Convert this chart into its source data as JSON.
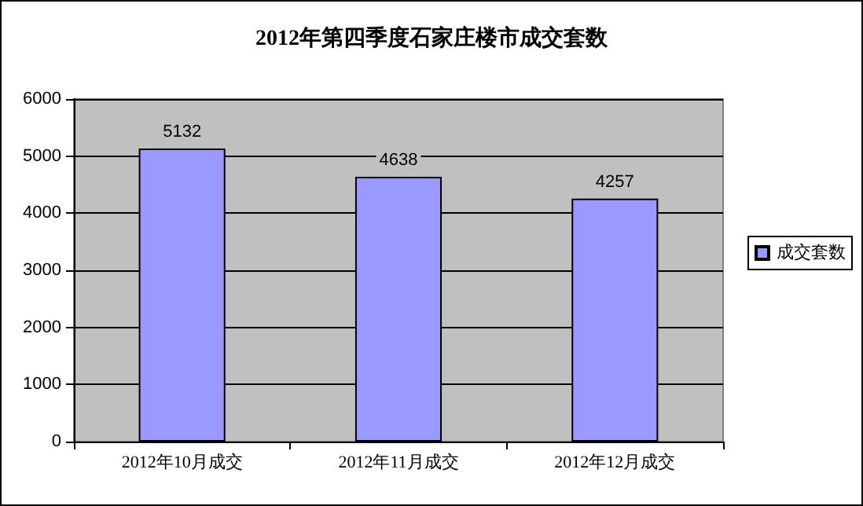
{
  "chart_data": {
    "type": "bar",
    "title": "2012年第四季度石家庄楼市成交套数",
    "categories": [
      "2012年10月成交",
      "2012年11月成交",
      "2012年12月成交"
    ],
    "series": [
      {
        "name": "成交套数",
        "color": "#9999ff",
        "values": [
          5132,
          4638,
          4257
        ]
      }
    ],
    "ylim": [
      0,
      6000
    ],
    "yticks": [
      0,
      1000,
      2000,
      3000,
      4000,
      5000,
      6000
    ],
    "grid": "y",
    "legend": "right",
    "data_labels": true
  }
}
